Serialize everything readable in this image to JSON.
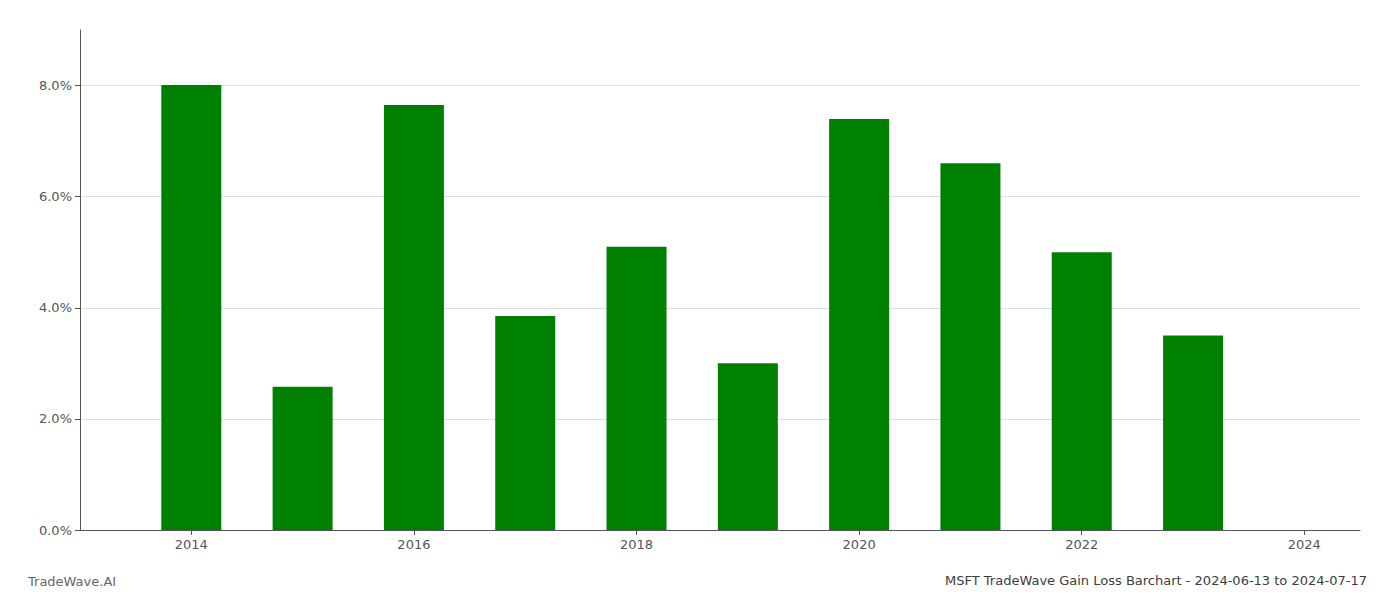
{
  "chart_data": {
    "type": "bar",
    "title": "MSFT TradeWave Gain Loss Barchart - 2024-06-13 to 2024-07-17",
    "annotations": [
      "TradeWave.AI"
    ],
    "x": [
      2014,
      2015,
      2016,
      2017,
      2018,
      2019,
      2020,
      2021,
      2022,
      2023
    ],
    "values": [
      0.0801,
      0.0258,
      0.0765,
      0.0385,
      0.051,
      0.03,
      0.074,
      0.066,
      0.05,
      0.035
    ],
    "color": "#008000",
    "xlim": [
      2013.0,
      2024.5
    ],
    "xticks": [
      2014,
      2016,
      2018,
      2020,
      2022,
      2024
    ],
    "ylim": [
      0,
      0.09
    ],
    "yticks": [
      {
        "value": 0.0,
        "label": "0.0%"
      },
      {
        "value": 0.02,
        "label": "2.0%"
      },
      {
        "value": 0.04,
        "label": "4.0%"
      },
      {
        "value": 0.06,
        "label": "6.0%"
      },
      {
        "value": 0.08,
        "label": "8.0%"
      }
    ],
    "grid": true
  }
}
